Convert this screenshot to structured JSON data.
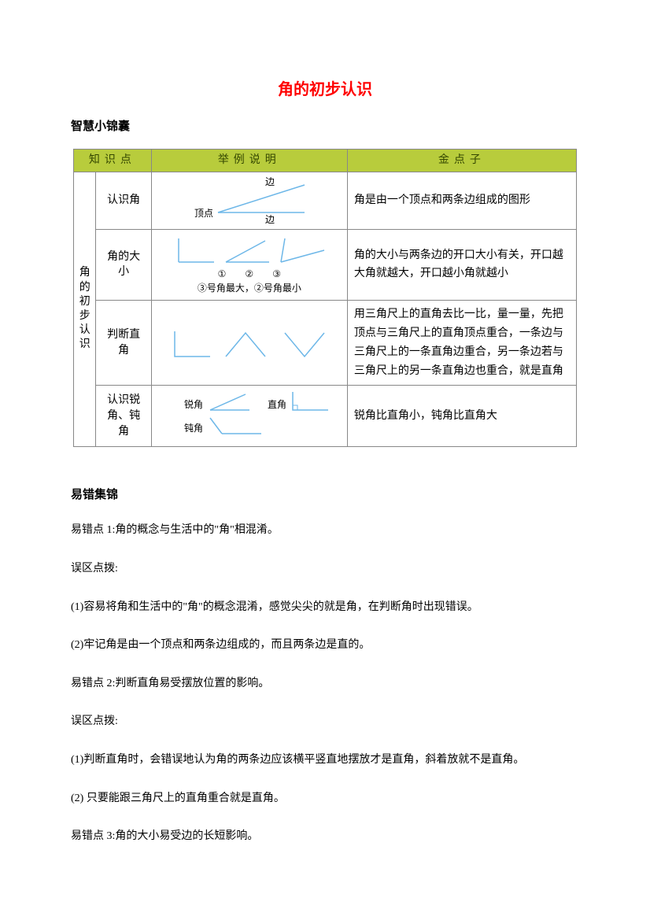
{
  "title": "角的初步认识",
  "section1_heading": "智慧小锦囊",
  "table": {
    "headers": [
      "知识点",
      "举例说明",
      "金点子"
    ],
    "vertical_label": "角的初步认识",
    "rows": [
      {
        "rowhead": "认识角",
        "example_labels": {
          "top": "边",
          "vertex": "顶点",
          "bottom": "边"
        },
        "tip": "角是由一个顶点和两条边组成的图形"
      },
      {
        "rowhead": "角的大小",
        "example_labels": {
          "nums": "①　　②　　③",
          "caption": "③号角最大，②号角最小"
        },
        "tip": "角的大小与两条边的开口大小有关，开口越大角就越大，开口越小角就越小"
      },
      {
        "rowhead": "判断直角",
        "tip": "用三角尺上的直角去比一比，量一量，先把顶点与三角尺上的直角顶点重合，一条边与三角尺上的一条直角边重合，另一条边若与三角尺上的另一条直角边也重合，就是直角"
      },
      {
        "rowhead": "认识锐角、钝角",
        "example_labels": {
          "acute": "锐角",
          "right": "直角",
          "obtuse": "钝角"
        },
        "tip": "锐角比直角小，钝角比直角大"
      }
    ]
  },
  "section2_heading": "易错集锦",
  "paragraphs": [
    "易错点 1:角的概念与生活中的\"角\"相混淆。",
    "误区点拨:",
    "(1)容易将角和生活中的\"角\"的概念混淆，感觉尖尖的就是角，在判断角时出现错误。",
    "(2)牢记角是由一个顶点和两条边组成的，而且两条边是直的。",
    "易错点 2:判断直角易受摆放位置的影响。",
    "误区点拨:",
    "(1)判断直角时，会错误地认为角的两条边应该横平竖直地摆放才是直角，斜着放就不是直角。",
    "(2) 只要能跟三角尺上的直角重合就是直角。",
    "易错点 3:角的大小易受边的长短影响。"
  ],
  "colors": {
    "title": "#ff0000",
    "header_bg": "#b8cc3c",
    "header_text": "#354800",
    "stroke": "#6db7e8",
    "text": "#000000"
  }
}
